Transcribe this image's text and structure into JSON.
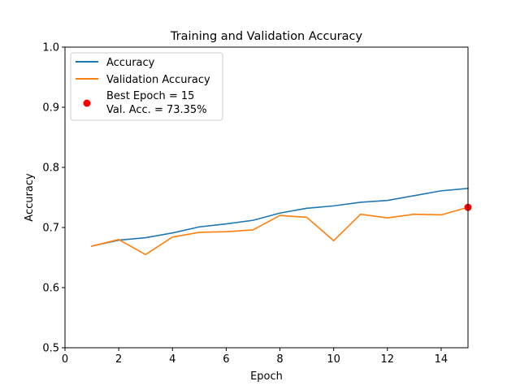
{
  "chart_data": {
    "type": "line",
    "title": "Training and Validation Accuracy",
    "xlabel": "Epoch",
    "ylabel": "Accuracy",
    "xlim": [
      0,
      15
    ],
    "ylim": [
      0.5,
      1.0
    ],
    "x_ticks": [
      "0",
      "2",
      "4",
      "6",
      "8",
      "10",
      "12",
      "14"
    ],
    "x_tick_values": [
      0,
      2,
      4,
      6,
      8,
      10,
      12,
      14
    ],
    "y_ticks": [
      "0.5",
      "0.6",
      "0.7",
      "0.8",
      "0.9",
      "1.0"
    ],
    "y_tick_values": [
      0.5,
      0.6,
      0.7,
      0.8,
      0.9,
      1.0
    ],
    "grid": false,
    "legend_position": "top-left",
    "x": [
      1,
      2,
      3,
      4,
      5,
      6,
      7,
      8,
      9,
      10,
      11,
      12,
      13,
      14,
      15
    ],
    "series": [
      {
        "name": "Accuracy",
        "color": "#1f77b4",
        "values": [
          0.669,
          0.679,
          0.683,
          0.691,
          0.701,
          0.706,
          0.712,
          0.724,
          0.732,
          0.736,
          0.742,
          0.745,
          0.753,
          0.761,
          0.765
        ]
      },
      {
        "name": "Validation Accuracy",
        "color": "#ff7f0e",
        "values": [
          0.669,
          0.68,
          0.655,
          0.684,
          0.692,
          0.693,
          0.696,
          0.72,
          0.717,
          0.678,
          0.722,
          0.716,
          0.722,
          0.721,
          0.7335
        ]
      }
    ],
    "best_point": {
      "x": 15,
      "y": 0.7335,
      "color": "#ff0000",
      "label_line1": "Best Epoch = 15",
      "label_line2": "Val. Acc. = 73.35%"
    }
  }
}
